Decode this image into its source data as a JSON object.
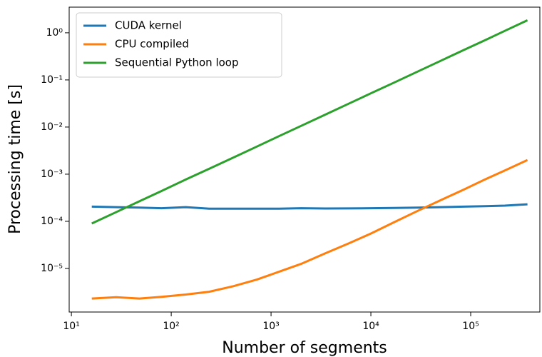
{
  "chart_data": {
    "type": "line",
    "xlabel": "Number of segments",
    "ylabel": "Processing time [s]",
    "xscale": "log",
    "yscale": "log",
    "legend": "upper left",
    "x": [
      16,
      28,
      48,
      80,
      140,
      240,
      420,
      720,
      1200,
      2000,
      3500,
      6000,
      10000,
      17000,
      30000,
      50000,
      85000,
      140000,
      220000,
      370000
    ],
    "series": [
      {
        "name": "CUDA kernel",
        "color": "#1f77b4",
        "values": [
          0.000205,
          0.0002,
          0.000195,
          0.00019,
          0.0002,
          0.000185,
          0.000185,
          0.000185,
          0.000186,
          0.00019,
          0.000187,
          0.000188,
          0.00019,
          0.000192,
          0.000195,
          0.0002,
          0.000205,
          0.00021,
          0.000215,
          0.00023
        ]
      },
      {
        "name": "CPU compiled",
        "color": "#ff7f0e",
        "values": [
          2.3e-06,
          2.45e-06,
          2.3e-06,
          2.5e-06,
          2.8e-06,
          3.2e-06,
          4.2e-06,
          5.8e-06,
          8.5e-06,
          1.25e-05,
          2.1e-05,
          3.4e-05,
          5.5e-05,
          9.5e-05,
          0.00017,
          0.00028,
          0.00047,
          0.00078,
          0.0012,
          0.002
        ]
      },
      {
        "name": "Sequential Python loop",
        "color": "#2ca02c",
        "values": [
          9e-05,
          0.000156,
          0.000266,
          0.00044,
          0.00077,
          0.0013,
          0.00226,
          0.00385,
          0.0064,
          0.0106,
          0.0184,
          0.0313,
          0.052,
          0.0875,
          0.153,
          0.254,
          0.43,
          0.7,
          1.1,
          1.84
        ]
      }
    ],
    "xlim": [
      9.5,
      493000
    ],
    "ylim": [
      1.19e-06,
      3.5
    ],
    "xticks": [
      {
        "value": 10,
        "label": "10¹"
      },
      {
        "value": 100,
        "label": "10²"
      },
      {
        "value": 1000,
        "label": "10³"
      },
      {
        "value": 10000,
        "label": "10⁴"
      },
      {
        "value": 100000,
        "label": "10⁵"
      }
    ],
    "yticks": [
      {
        "value": 1e-05,
        "label": "10⁻⁵"
      },
      {
        "value": 0.0001,
        "label": "10⁻⁴"
      },
      {
        "value": 0.001,
        "label": "10⁻³"
      },
      {
        "value": 0.01,
        "label": "10⁻²"
      },
      {
        "value": 0.1,
        "label": "10⁻¹"
      },
      {
        "value": 1,
        "label": "10⁰"
      }
    ]
  }
}
